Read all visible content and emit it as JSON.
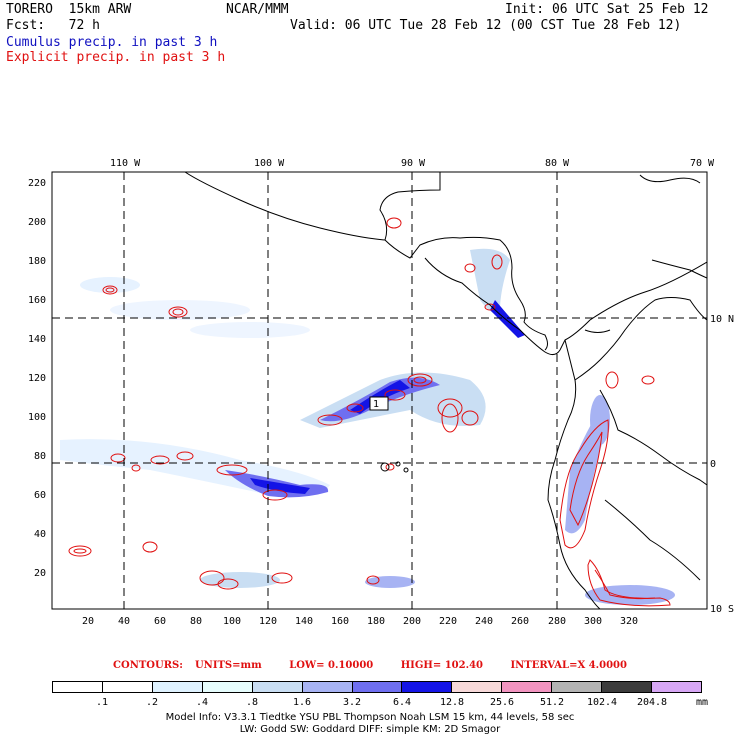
{
  "header": {
    "model": "TORERO  15km ARW",
    "org": "NCAR/MMM",
    "init": "Init: 06 UTC Sat 25 Feb 12",
    "fcst": "Fcst:   72 h",
    "valid": "Valid: 06 UTC Tue 28 Feb 12 (00 CST Tue 28 Feb 12)",
    "cumulus": "Cumulus precip. in past 3 h",
    "explicit": "Explicit precip. in past 3 h"
  },
  "map": {
    "lon_labels": [
      "110 W",
      "100 W",
      "90 W",
      "80 W",
      "70 W"
    ],
    "lat_labels": [
      "10 N",
      "0",
      "10 S"
    ],
    "y_ticks": [
      "220",
      "200",
      "180",
      "160",
      "140",
      "120",
      "100",
      "80",
      "60",
      "40",
      "20"
    ],
    "x_ticks": [
      "20",
      "40",
      "60",
      "80",
      "100",
      "120",
      "140",
      "160",
      "180",
      "200",
      "220",
      "240",
      "260",
      "280",
      "300",
      "320"
    ],
    "max_label": "1"
  },
  "contours": {
    "label": "CONTOURS:",
    "units": "UNITS=mm",
    "low": "LOW= 0.10000",
    "high": "HIGH= 102.40",
    "interval": "INTERVAL=X 4.0000"
  },
  "colorbar": {
    "labels": [
      ".1",
      ".2",
      ".4",
      ".8",
      "1.6",
      "3.2",
      "6.4",
      "12.8",
      "25.6",
      "51.2",
      "102.4",
      "204.8",
      "mm"
    ],
    "colors": [
      "#ffffff",
      "#ffffff",
      "#dff2ff",
      "#e6fdfd",
      "#c9def3",
      "#a7b3f3",
      "#6f6ff0",
      "#1414e6",
      "#f7d9d9",
      "#f294c0",
      "#b3b3b3",
      "#3c3c3c",
      "#d7a7f5"
    ]
  },
  "footer": {
    "line1": "Model Info: V3.3.1    Tiedtke YSU PBL  Thompson    Noah LSM  15 km,   44 levels,   58 sec",
    "line2": "LW: Godd SW: Goddard DIFF: simple KM: 2D Smagor"
  }
}
